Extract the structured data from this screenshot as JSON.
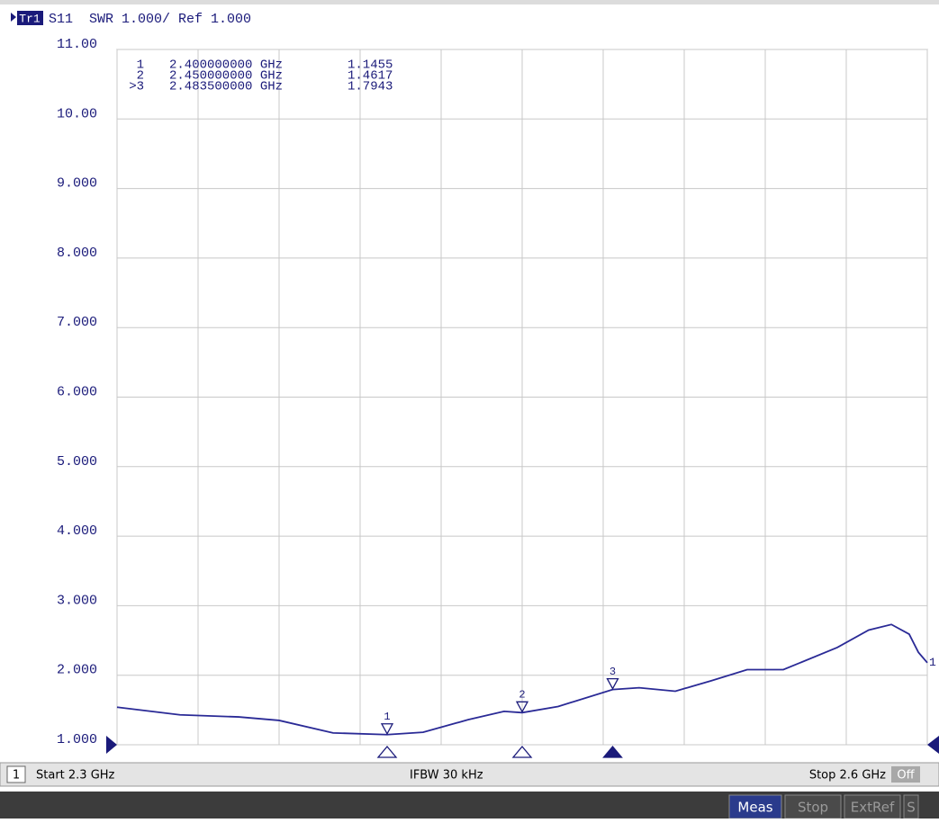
{
  "header": {
    "trace": "Tr1",
    "text": "S11  SWR 1.000/ Ref 1.000"
  },
  "chart_data": {
    "type": "line",
    "x": [
      2.3,
      2.3233,
      2.345,
      2.36,
      2.38,
      2.4,
      2.4133,
      2.43,
      2.4433,
      2.45,
      2.4633,
      2.4835,
      2.4933,
      2.5067,
      2.52,
      2.5333,
      2.5467,
      2.5667,
      2.5783,
      2.5867,
      2.5933,
      2.5967,
      2.6
    ],
    "series": [
      {
        "name": "1",
        "color": "#2a2a96",
        "values": [
          1.54,
          1.43,
          1.4,
          1.35,
          1.17,
          1.1455,
          1.18,
          1.36,
          1.48,
          1.4617,
          1.55,
          1.7943,
          1.82,
          1.77,
          1.92,
          2.08,
          2.08,
          2.4,
          2.65,
          2.73,
          2.59,
          2.33,
          2.18
        ]
      }
    ],
    "xlim": [
      2.3,
      2.6
    ],
    "xticks": [
      2.3,
      2.33,
      2.36,
      2.39,
      2.42,
      2.45,
      2.48,
      2.51,
      2.54,
      2.57,
      2.6
    ],
    "ylim": [
      1,
      11
    ],
    "yticks": [
      {
        "value": 1,
        "label": "1.000"
      },
      {
        "value": 2,
        "label": "2.000"
      },
      {
        "value": 3,
        "label": "3.000"
      },
      {
        "value": 4,
        "label": "4.000"
      },
      {
        "value": 5,
        "label": "5.000"
      },
      {
        "value": 6,
        "label": "6.000"
      },
      {
        "value": 7,
        "label": "7.000"
      },
      {
        "value": 8,
        "label": "8.000"
      },
      {
        "value": 9,
        "label": "9.000"
      },
      {
        "value": 10,
        "label": "10.00"
      },
      {
        "value": 11,
        "label": "11.00"
      }
    ],
    "grid": true,
    "markers": [
      {
        "name": "1",
        "tag": "1",
        "x": {
          "value": 2.4,
          "label": "2.400000000 GHz"
        },
        "y": 1.1455
      },
      {
        "name": "2",
        "tag": "2",
        "x": {
          "value": 2.45,
          "label": "2.450000000 GHz"
        },
        "y": 1.4617
      },
      {
        "name": ">3",
        "tag": "3",
        "x": {
          "value": 2.4835,
          "label": "2.483500000 GHz"
        },
        "y": 1.7943
      }
    ]
  },
  "status": {
    "channel": "1",
    "start": "Start 2.3 GHz",
    "ifbw": "IFBW 30 kHz",
    "stop": "Stop 2.6 GHz",
    "off": "Off"
  },
  "toolbar": [
    "Meas",
    "Stop",
    "ExtRef",
    "S"
  ]
}
